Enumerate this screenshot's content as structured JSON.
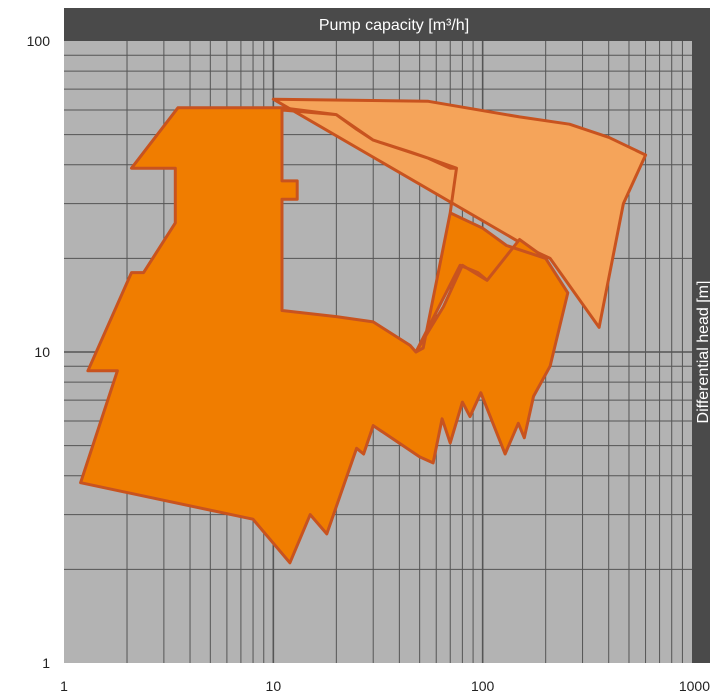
{
  "chart_data": {
    "type": "area",
    "xlabel": "Pump capacity  [m³/h]",
    "ylabel": "Differential head  [m]",
    "x_scale": "log",
    "y_scale": "log",
    "xlim": [
      1,
      1000
    ],
    "ylim": [
      1,
      100
    ],
    "x_ticks": [
      "1",
      "10",
      "100",
      "1000"
    ],
    "y_ticks": [
      "1",
      "10",
      "100"
    ],
    "grid": true,
    "colors": {
      "plot_background": "#b3b3b3",
      "frame": "#4a4a4a",
      "grid": "#555555",
      "fill_dark": "#f07d00",
      "fill_light": "#f5a45a",
      "outline": "#c8531f"
    },
    "regions": [
      {
        "fill": "light",
        "points": [
          [
            10,
            65
          ],
          [
            55,
            64
          ],
          [
            150,
            57
          ],
          [
            260,
            54
          ],
          [
            400,
            49
          ],
          [
            600,
            43
          ],
          [
            470,
            30
          ],
          [
            360,
            12
          ],
          [
            210,
            20
          ],
          [
            180,
            21
          ]
        ]
      },
      {
        "fill": "dark",
        "points": [
          [
            1.2,
            3.8
          ],
          [
            8,
            2.9
          ],
          [
            12,
            2.1
          ],
          [
            15,
            3
          ],
          [
            18,
            2.6
          ],
          [
            25,
            4.9
          ],
          [
            27,
            4.7
          ],
          [
            30,
            5.8
          ],
          [
            50,
            4.6
          ],
          [
            58,
            4.4
          ],
          [
            64,
            6.1
          ],
          [
            70,
            5.1
          ],
          [
            80,
            6.9
          ],
          [
            87,
            6.2
          ],
          [
            98,
            7.4
          ],
          [
            128,
            4.7
          ],
          [
            148,
            5.9
          ],
          [
            158,
            5.3
          ],
          [
            175,
            7.2
          ],
          [
            210,
            9
          ],
          [
            255,
            15.5
          ],
          [
            200,
            20
          ],
          [
            150,
            23
          ],
          [
            105,
            17
          ],
          [
            95,
            18
          ],
          [
            78,
            19
          ],
          [
            48,
            10
          ],
          [
            45,
            10.5
          ],
          [
            30,
            12.5
          ],
          [
            20,
            13
          ],
          [
            11,
            13.6
          ],
          [
            11,
            31
          ],
          [
            13,
            31
          ],
          [
            13,
            35.5
          ],
          [
            11,
            35.5
          ],
          [
            11,
            60
          ],
          [
            20,
            58
          ],
          [
            25,
            52
          ],
          [
            30,
            48
          ],
          [
            45,
            44
          ],
          [
            55,
            42
          ],
          [
            70,
            39
          ],
          [
            75,
            39
          ],
          [
            70,
            28
          ],
          [
            100,
            25
          ],
          [
            130,
            22
          ],
          [
            200,
            20
          ],
          [
            150,
            23
          ],
          [
            105,
            17
          ],
          [
            80,
            19
          ],
          [
            65,
            14
          ],
          [
            48,
            10
          ],
          [
            52,
            10.3
          ],
          [
            70,
            28
          ],
          [
            75,
            39
          ],
          [
            55,
            42
          ],
          [
            30,
            48
          ],
          [
            20,
            58
          ],
          [
            11,
            61
          ],
          [
            3.5,
            61
          ],
          [
            2.1,
            39
          ],
          [
            3.4,
            39
          ],
          [
            3.4,
            26
          ],
          [
            2.4,
            18
          ],
          [
            2.1,
            18
          ],
          [
            1.3,
            8.7
          ],
          [
            1.8,
            8.7
          ]
        ]
      }
    ]
  }
}
